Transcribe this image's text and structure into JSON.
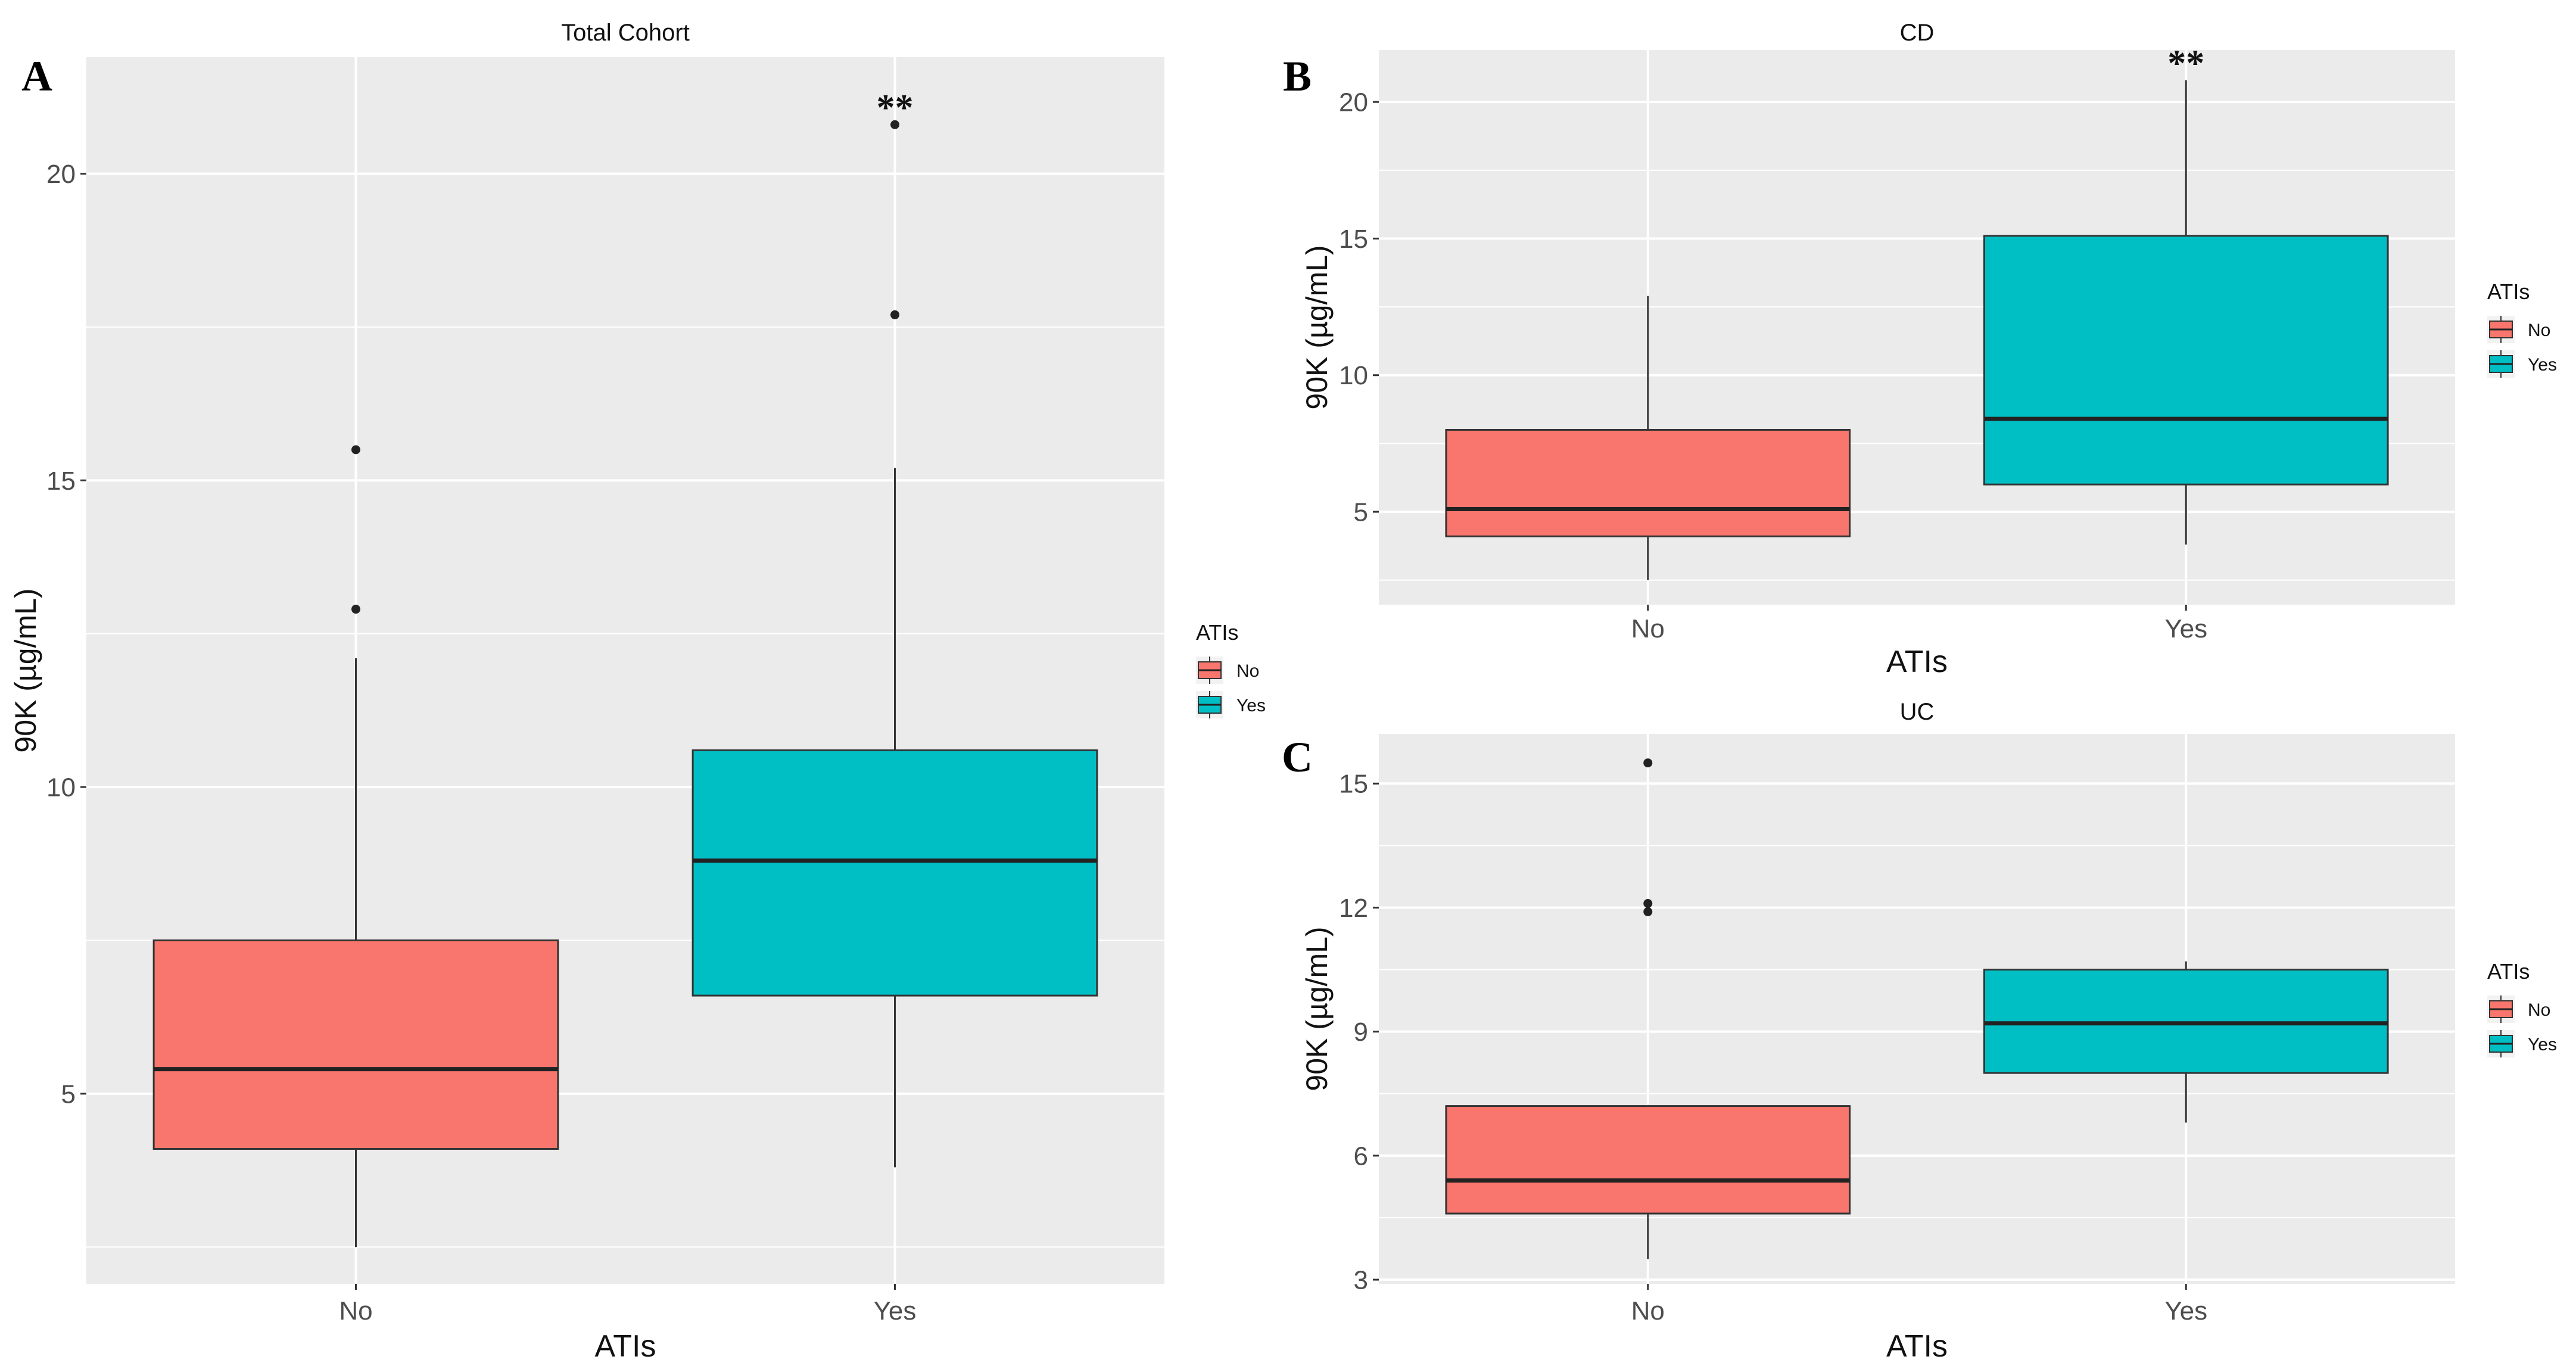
{
  "chart_data": [
    {
      "panel_letter": "A",
      "type": "boxplot",
      "title": "Total Cohort",
      "xlabel": "ATIs",
      "ylabel": "90K (µg/mL)",
      "ylim": [
        1.9,
        21.9
      ],
      "yticks": [
        5,
        10,
        15,
        20
      ],
      "categories": [
        "No",
        "Yes"
      ],
      "boxes": [
        {
          "category": "No",
          "q1": 4.1,
          "median": 5.4,
          "q3": 7.5,
          "whisker_low": 2.5,
          "whisker_high": 12.1,
          "outliers": [
            12.9,
            15.5
          ],
          "color": "#F8766D"
        },
        {
          "category": "Yes",
          "q1": 6.6,
          "median": 8.8,
          "q3": 10.6,
          "whisker_low": 3.8,
          "whisker_high": 15.2,
          "outliers": [
            17.7,
            20.8
          ],
          "color": "#00BFC4"
        }
      ],
      "significance": "**",
      "legend": {
        "title": "ATIs",
        "entries": [
          {
            "label": "No",
            "color": "#F8766D"
          },
          {
            "label": "Yes",
            "color": "#00BFC4"
          }
        ]
      }
    },
    {
      "panel_letter": "B",
      "type": "boxplot",
      "title": "CD",
      "xlabel": "ATIs",
      "ylabel": "90K (µg/mL)",
      "ylim": [
        1.6,
        21.9
      ],
      "yticks": [
        5,
        10,
        15,
        20
      ],
      "categories": [
        "No",
        "Yes"
      ],
      "boxes": [
        {
          "category": "No",
          "q1": 4.1,
          "median": 5.1,
          "q3": 8.0,
          "whisker_low": 2.5,
          "whisker_high": 12.9,
          "outliers": [],
          "color": "#F8766D"
        },
        {
          "category": "Yes",
          "q1": 6.0,
          "median": 8.4,
          "q3": 15.1,
          "whisker_low": 3.8,
          "whisker_high": 20.8,
          "outliers": [],
          "color": "#00BFC4"
        }
      ],
      "significance": "**",
      "legend": {
        "title": "ATIs",
        "entries": [
          {
            "label": "No",
            "color": "#F8766D"
          },
          {
            "label": "Yes",
            "color": "#00BFC4"
          }
        ]
      }
    },
    {
      "panel_letter": "C",
      "type": "boxplot",
      "title": "UC",
      "xlabel": "ATIs",
      "ylabel": "90K (µg/mL)",
      "ylim": [
        2.9,
        16.2
      ],
      "yticks": [
        3,
        6,
        9,
        12,
        15
      ],
      "categories": [
        "No",
        "Yes"
      ],
      "boxes": [
        {
          "category": "No",
          "q1": 4.6,
          "median": 5.4,
          "q3": 7.2,
          "whisker_low": 3.5,
          "whisker_high": 7.2,
          "outliers": [
            11.9,
            12.1,
            15.5
          ],
          "color": "#F8766D"
        },
        {
          "category": "Yes",
          "q1": 8.0,
          "median": 9.2,
          "q3": 10.5,
          "whisker_low": 6.8,
          "whisker_high": 10.7,
          "outliers": [],
          "color": "#00BFC4"
        }
      ],
      "significance": "",
      "legend": {
        "title": "ATIs",
        "entries": [
          {
            "label": "No",
            "color": "#F8766D"
          },
          {
            "label": "Yes",
            "color": "#00BFC4"
          }
        ]
      }
    }
  ]
}
